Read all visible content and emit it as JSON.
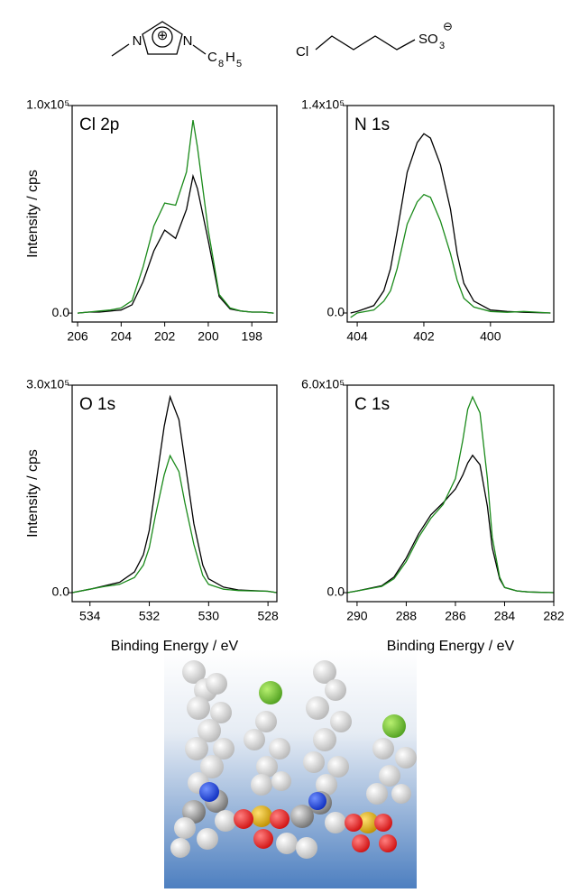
{
  "structures": {
    "cation": {
      "n1": "N",
      "charge": "⊕",
      "n3": "N",
      "sub_c": "C",
      "sub_c_n": "8",
      "sub_h": "H",
      "sub_h_n": "5"
    },
    "anion": {
      "cl": "Cl",
      "group": "SO",
      "group_n": "3",
      "charge": "⊖"
    }
  },
  "chart_data": [
    {
      "type": "line",
      "title": "Cl 2p",
      "ylabel": "Intensity / cps",
      "xlim": [
        206.25,
        196.85
      ],
      "ylim": [
        -4300,
        100000
      ],
      "xticks": [
        206,
        204,
        202,
        200,
        198
      ],
      "yticks": [
        {
          "value": 0,
          "label": "0.0"
        },
        {
          "value": 100000,
          "label": "1.0x10⁵"
        }
      ],
      "x": [
        206,
        205.5,
        205,
        204.5,
        204,
        203.5,
        203,
        202.5,
        202,
        201.5,
        201,
        200.7,
        200.5,
        200,
        199.5,
        199,
        198.5,
        198,
        197.5,
        197
      ],
      "series": [
        {
          "color": "#000000",
          "values": [
            0,
            500,
            500,
            1000,
            1500,
            4000,
            15000,
            30000,
            40000,
            36000,
            50000,
            66000,
            60000,
            35000,
            8000,
            2000,
            1000,
            500,
            500,
            0
          ]
        },
        {
          "color": "#1a8a1a",
          "values": [
            0,
            500,
            1000,
            1500,
            2500,
            6000,
            22000,
            42000,
            53000,
            52000,
            68000,
            93000,
            80000,
            40000,
            9000,
            2500,
            1000,
            500,
            500,
            0
          ]
        }
      ]
    },
    {
      "type": "line",
      "title": "N 1s",
      "xlim": [
        404.3,
        398.1
      ],
      "ylim": [
        -6100,
        140000
      ],
      "xticks": [
        404,
        402,
        400
      ],
      "yticks": [
        {
          "value": 0,
          "label": "0.0"
        },
        {
          "value": 140000,
          "label": "1.4x10⁵"
        }
      ],
      "x": [
        404.2,
        404,
        403.5,
        403.2,
        403,
        402.8,
        402.5,
        402.2,
        402,
        401.8,
        401.5,
        401.2,
        401,
        400.8,
        400.5,
        400,
        399.5,
        399,
        398.2
      ],
      "series": [
        {
          "color": "#000000",
          "values": [
            0,
            1000,
            5000,
            15000,
            30000,
            55000,
            95000,
            115000,
            121000,
            118000,
            100000,
            70000,
            40000,
            20000,
            8000,
            2000,
            1000,
            500,
            0
          ]
        },
        {
          "color": "#1a8a1a",
          "values": [
            -3000,
            0,
            2000,
            8000,
            15000,
            30000,
            60000,
            75000,
            80000,
            78000,
            62000,
            40000,
            22000,
            10000,
            4000,
            1000,
            500,
            1000,
            0
          ]
        }
      ]
    },
    {
      "type": "line",
      "title": "O 1s",
      "ylabel": "Intensity / cps",
      "xlabel": "Binding Energy / eV",
      "xlim": [
        534.6,
        527.7
      ],
      "ylim": [
        -13000,
        300000
      ],
      "xticks": [
        534,
        532,
        530,
        528
      ],
      "yticks": [
        {
          "value": 0,
          "label": "0.0"
        },
        {
          "value": 300000,
          "label": "3.0x10⁵"
        }
      ],
      "x": [
        534.6,
        534,
        533.5,
        533,
        532.5,
        532.2,
        532,
        531.8,
        531.5,
        531.3,
        531,
        530.8,
        530.5,
        530.2,
        530,
        529.5,
        529,
        528,
        527.7
      ],
      "series": [
        {
          "color": "#000000",
          "values": [
            0,
            5000,
            10000,
            15000,
            30000,
            55000,
            90000,
            150000,
            240000,
            283000,
            250000,
            190000,
            100000,
            40000,
            20000,
            8000,
            4000,
            2000,
            0
          ]
        },
        {
          "color": "#1a8a1a",
          "values": [
            0,
            5000,
            9000,
            12000,
            22000,
            40000,
            65000,
            110000,
            170000,
            198000,
            175000,
            130000,
            70000,
            25000,
            12000,
            5000,
            3000,
            2000,
            0
          ]
        }
      ]
    },
    {
      "type": "line",
      "title": "C 1s",
      "xlabel": "Binding Energy / eV",
      "xlim": [
        290.4,
        282
      ],
      "ylim": [
        -26000,
        600000
      ],
      "xticks": [
        290,
        288,
        286,
        284,
        282
      ],
      "yticks": [
        {
          "value": 0,
          "label": "0.0"
        },
        {
          "value": 600000,
          "label": "6.0x10⁵"
        }
      ],
      "x": [
        290.4,
        290,
        289,
        288.5,
        288,
        287.5,
        287,
        286.5,
        286,
        285.7,
        285.5,
        285.3,
        285,
        284.7,
        284.5,
        284.2,
        284,
        283.5,
        283,
        282
      ],
      "series": [
        {
          "color": "#000000",
          "values": [
            0,
            5000,
            20000,
            45000,
            100000,
            170000,
            225000,
            260000,
            300000,
            340000,
            375000,
            397000,
            370000,
            250000,
            130000,
            40000,
            15000,
            5000,
            2000,
            0
          ]
        },
        {
          "color": "#1a8a1a",
          "values": [
            0,
            5000,
            18000,
            40000,
            90000,
            160000,
            215000,
            255000,
            330000,
            440000,
            530000,
            566000,
            520000,
            330000,
            160000,
            45000,
            15000,
            5000,
            2000,
            0
          ]
        }
      ]
    }
  ]
}
